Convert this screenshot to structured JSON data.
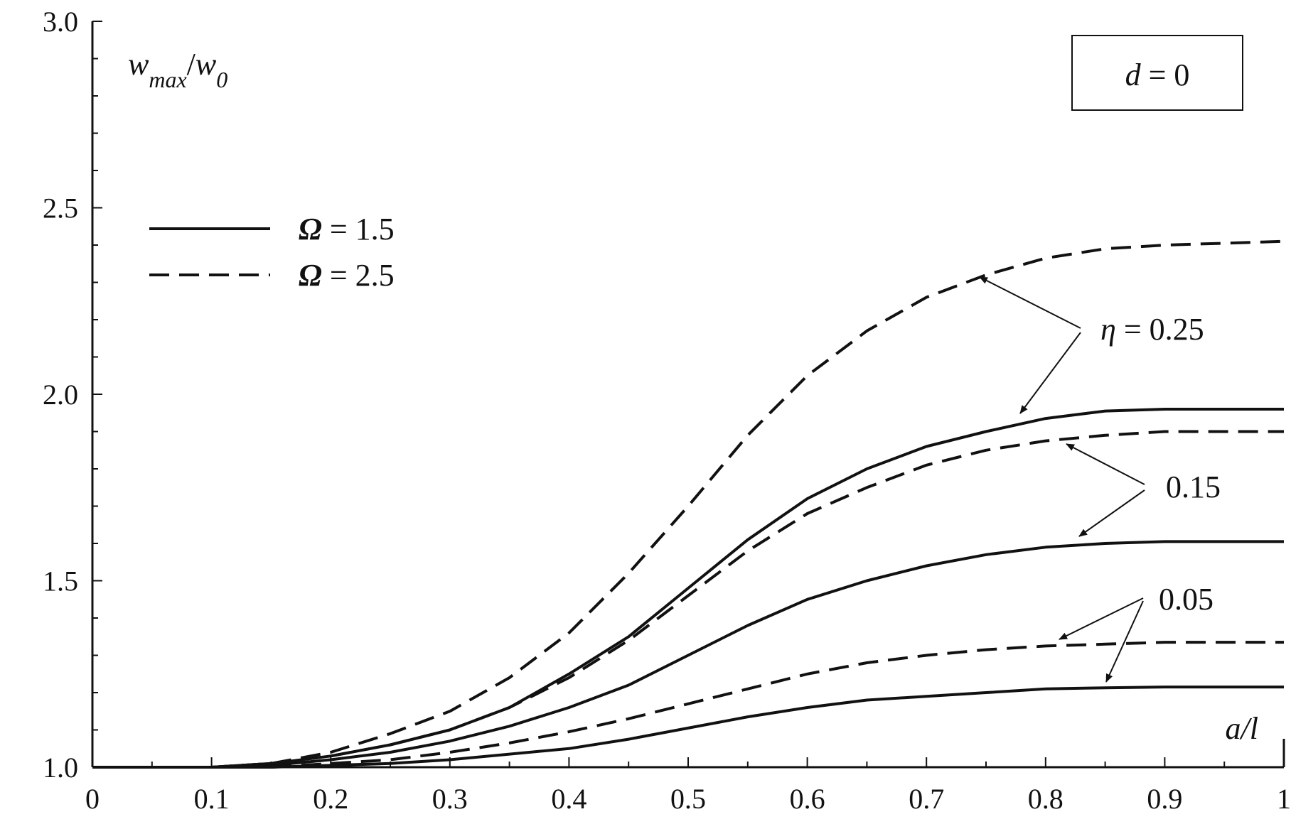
{
  "chart_data": {
    "type": "line",
    "title": "",
    "xlabel": "a/l",
    "ylabel": "w_max/w_0",
    "xlim": [
      0,
      1
    ],
    "ylim": [
      1.0,
      3.0
    ],
    "xticks": [
      0,
      0.1,
      0.2,
      0.3,
      0.4,
      0.5,
      0.6,
      0.7,
      0.8,
      0.9,
      1
    ],
    "xtick_labels": [
      "0",
      "0.1",
      "0.2",
      "0.3",
      "0.4",
      "0.5",
      "0.6",
      "0.7",
      "0.8",
      "0.9",
      "1"
    ],
    "yticks": [
      1.0,
      1.5,
      2.0,
      2.5,
      3.0
    ],
    "ytick_labels": [
      "1.0",
      "1.5",
      "2.0",
      "2.5",
      "3.0"
    ],
    "grid": false,
    "legend_position": "top-left",
    "legend": [
      {
        "label": "Ω = 1.5",
        "style": "solid"
      },
      {
        "label": "Ω = 2.5",
        "style": "dashed"
      }
    ],
    "boxed_annotation": "d = 0",
    "eta_labels": [
      "η = 0.25",
      "0.15",
      "0.05"
    ],
    "x": [
      0,
      0.05,
      0.1,
      0.15,
      0.2,
      0.25,
      0.3,
      0.35,
      0.4,
      0.45,
      0.5,
      0.55,
      0.6,
      0.65,
      0.7,
      0.75,
      0.8,
      0.85,
      0.9,
      0.95,
      1.0
    ],
    "series": [
      {
        "eta": 0.25,
        "omega": 1.5,
        "style": "solid",
        "values": [
          1.0,
          1.0,
          1.0,
          1.01,
          1.03,
          1.06,
          1.1,
          1.16,
          1.25,
          1.35,
          1.48,
          1.61,
          1.72,
          1.8,
          1.86,
          1.9,
          1.935,
          1.955,
          1.96,
          1.96,
          1.96
        ]
      },
      {
        "eta": 0.25,
        "omega": 2.5,
        "style": "dashed",
        "values": [
          1.0,
          1.0,
          1.0,
          1.01,
          1.04,
          1.09,
          1.15,
          1.24,
          1.36,
          1.52,
          1.7,
          1.89,
          2.05,
          2.17,
          2.26,
          2.32,
          2.365,
          2.39,
          2.4,
          2.405,
          2.41
        ]
      },
      {
        "eta": 0.15,
        "omega": 1.5,
        "style": "solid",
        "values": [
          1.0,
          1.0,
          1.0,
          1.005,
          1.02,
          1.04,
          1.07,
          1.11,
          1.16,
          1.22,
          1.3,
          1.38,
          1.45,
          1.5,
          1.54,
          1.57,
          1.59,
          1.6,
          1.605,
          1.605,
          1.605
        ]
      },
      {
        "eta": 0.15,
        "omega": 2.5,
        "style": "dashed",
        "values": [
          1.0,
          1.0,
          1.0,
          1.01,
          1.03,
          1.06,
          1.1,
          1.16,
          1.24,
          1.34,
          1.46,
          1.58,
          1.68,
          1.75,
          1.81,
          1.85,
          1.875,
          1.89,
          1.9,
          1.9,
          1.9
        ]
      },
      {
        "eta": 0.05,
        "omega": 1.5,
        "style": "solid",
        "values": [
          1.0,
          1.0,
          1.0,
          1.0,
          1.005,
          1.01,
          1.02,
          1.035,
          1.05,
          1.075,
          1.105,
          1.135,
          1.16,
          1.18,
          1.19,
          1.2,
          1.21,
          1.213,
          1.215,
          1.215,
          1.215
        ]
      },
      {
        "eta": 0.05,
        "omega": 2.5,
        "style": "dashed",
        "values": [
          1.0,
          1.0,
          1.0,
          1.0,
          1.01,
          1.02,
          1.04,
          1.065,
          1.095,
          1.13,
          1.17,
          1.21,
          1.25,
          1.28,
          1.3,
          1.315,
          1.325,
          1.33,
          1.335,
          1.335,
          1.335
        ]
      }
    ]
  }
}
